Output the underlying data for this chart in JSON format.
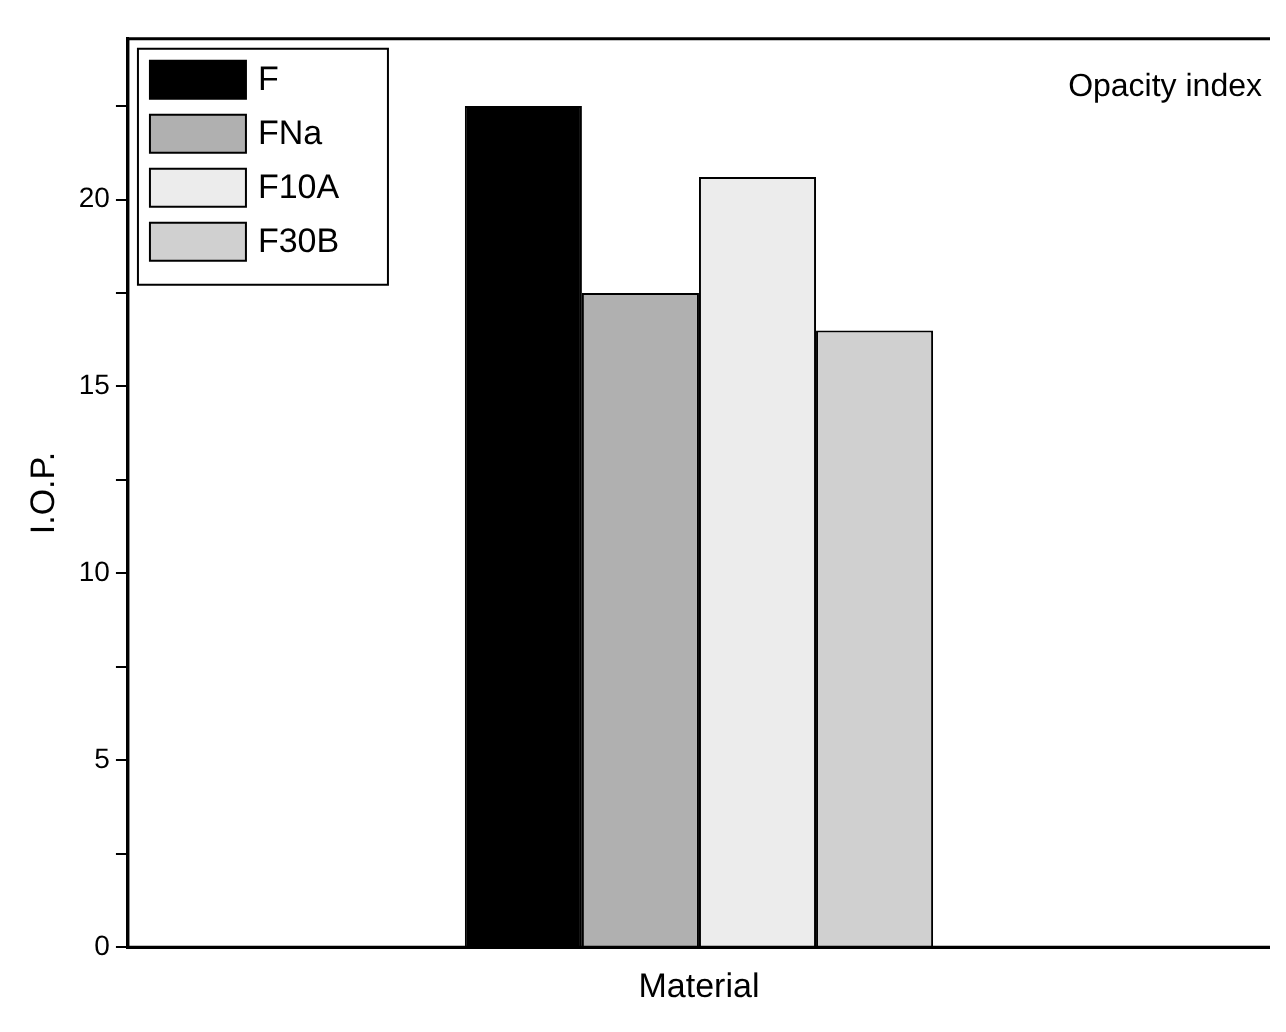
{
  "chart_data": {
    "type": "bar",
    "xlabel": "Material",
    "ylabel": "I.O.P.",
    "annotations": [
      "Opacity index"
    ],
    "categories": [
      null
    ],
    "series": [
      {
        "name": "F",
        "color": "#000000",
        "values": [
          22.5
        ]
      },
      {
        "name": "FNa",
        "color": "#b0b0b0",
        "values": [
          17.5
        ]
      },
      {
        "name": "F10A",
        "color": "#ececec",
        "values": [
          20.6
        ]
      },
      {
        "name": "F30B",
        "color": "#d0d0d0",
        "values": [
          16.5
        ]
      }
    ],
    "ylim": [
      0,
      24.3
    ],
    "yticks": [
      0,
      {
        "value": 2.5,
        "label": null
      },
      5,
      {
        "value": 7.5,
        "label": null
      },
      10,
      {
        "value": 12.5,
        "label": null
      },
      15,
      {
        "value": 17.5,
        "label": null
      },
      20,
      {
        "value": 22.5,
        "label": null
      }
    ],
    "grid": false,
    "legend": "top left",
    "tick_labels": "y"
  }
}
